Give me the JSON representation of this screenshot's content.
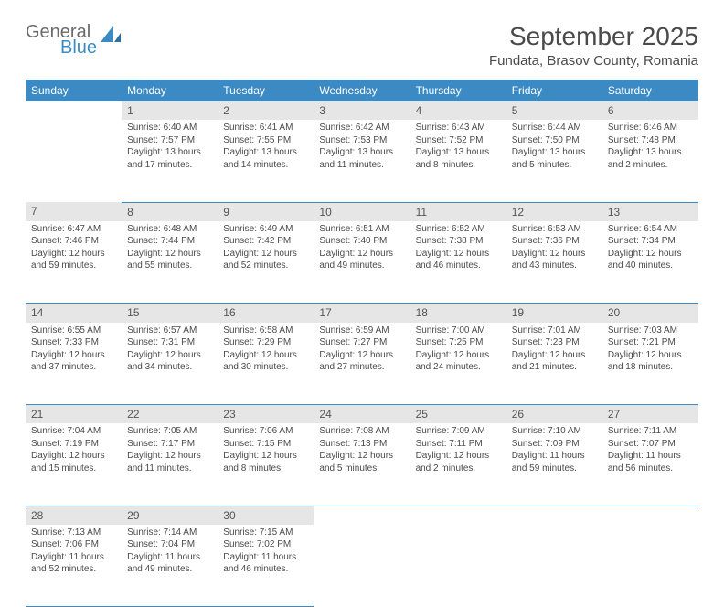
{
  "logo": {
    "word1": "General",
    "word2": "Blue",
    "accent_color": "#3b8ac4",
    "text_color": "#6b6b6b"
  },
  "title": "September 2025",
  "location": "Fundata, Brasov County, Romania",
  "header_bg": "#3b8ac4",
  "header_fg": "#ffffff",
  "daynum_bg": "#e6e6e6",
  "rule_color": "#3b8ac4",
  "body_bg": "#ffffff",
  "text_color": "#4a4a4a",
  "font_family": "Arial, Helvetica, sans-serif",
  "title_fontsize": 28,
  "location_fontsize": 15,
  "header_fontsize": 12,
  "cell_fontsize": 10,
  "day_headers": [
    "Sunday",
    "Monday",
    "Tuesday",
    "Wednesday",
    "Thursday",
    "Friday",
    "Saturday"
  ],
  "weeks": [
    [
      null,
      {
        "n": "1",
        "sr": "Sunrise: 6:40 AM",
        "ss": "Sunset: 7:57 PM",
        "d1": "Daylight: 13 hours",
        "d2": "and 17 minutes."
      },
      {
        "n": "2",
        "sr": "Sunrise: 6:41 AM",
        "ss": "Sunset: 7:55 PM",
        "d1": "Daylight: 13 hours",
        "d2": "and 14 minutes."
      },
      {
        "n": "3",
        "sr": "Sunrise: 6:42 AM",
        "ss": "Sunset: 7:53 PM",
        "d1": "Daylight: 13 hours",
        "d2": "and 11 minutes."
      },
      {
        "n": "4",
        "sr": "Sunrise: 6:43 AM",
        "ss": "Sunset: 7:52 PM",
        "d1": "Daylight: 13 hours",
        "d2": "and 8 minutes."
      },
      {
        "n": "5",
        "sr": "Sunrise: 6:44 AM",
        "ss": "Sunset: 7:50 PM",
        "d1": "Daylight: 13 hours",
        "d2": "and 5 minutes."
      },
      {
        "n": "6",
        "sr": "Sunrise: 6:46 AM",
        "ss": "Sunset: 7:48 PM",
        "d1": "Daylight: 13 hours",
        "d2": "and 2 minutes."
      }
    ],
    [
      {
        "n": "7",
        "sr": "Sunrise: 6:47 AM",
        "ss": "Sunset: 7:46 PM",
        "d1": "Daylight: 12 hours",
        "d2": "and 59 minutes."
      },
      {
        "n": "8",
        "sr": "Sunrise: 6:48 AM",
        "ss": "Sunset: 7:44 PM",
        "d1": "Daylight: 12 hours",
        "d2": "and 55 minutes."
      },
      {
        "n": "9",
        "sr": "Sunrise: 6:49 AM",
        "ss": "Sunset: 7:42 PM",
        "d1": "Daylight: 12 hours",
        "d2": "and 52 minutes."
      },
      {
        "n": "10",
        "sr": "Sunrise: 6:51 AM",
        "ss": "Sunset: 7:40 PM",
        "d1": "Daylight: 12 hours",
        "d2": "and 49 minutes."
      },
      {
        "n": "11",
        "sr": "Sunrise: 6:52 AM",
        "ss": "Sunset: 7:38 PM",
        "d1": "Daylight: 12 hours",
        "d2": "and 46 minutes."
      },
      {
        "n": "12",
        "sr": "Sunrise: 6:53 AM",
        "ss": "Sunset: 7:36 PM",
        "d1": "Daylight: 12 hours",
        "d2": "and 43 minutes."
      },
      {
        "n": "13",
        "sr": "Sunrise: 6:54 AM",
        "ss": "Sunset: 7:34 PM",
        "d1": "Daylight: 12 hours",
        "d2": "and 40 minutes."
      }
    ],
    [
      {
        "n": "14",
        "sr": "Sunrise: 6:55 AM",
        "ss": "Sunset: 7:33 PM",
        "d1": "Daylight: 12 hours",
        "d2": "and 37 minutes."
      },
      {
        "n": "15",
        "sr": "Sunrise: 6:57 AM",
        "ss": "Sunset: 7:31 PM",
        "d1": "Daylight: 12 hours",
        "d2": "and 34 minutes."
      },
      {
        "n": "16",
        "sr": "Sunrise: 6:58 AM",
        "ss": "Sunset: 7:29 PM",
        "d1": "Daylight: 12 hours",
        "d2": "and 30 minutes."
      },
      {
        "n": "17",
        "sr": "Sunrise: 6:59 AM",
        "ss": "Sunset: 7:27 PM",
        "d1": "Daylight: 12 hours",
        "d2": "and 27 minutes."
      },
      {
        "n": "18",
        "sr": "Sunrise: 7:00 AM",
        "ss": "Sunset: 7:25 PM",
        "d1": "Daylight: 12 hours",
        "d2": "and 24 minutes."
      },
      {
        "n": "19",
        "sr": "Sunrise: 7:01 AM",
        "ss": "Sunset: 7:23 PM",
        "d1": "Daylight: 12 hours",
        "d2": "and 21 minutes."
      },
      {
        "n": "20",
        "sr": "Sunrise: 7:03 AM",
        "ss": "Sunset: 7:21 PM",
        "d1": "Daylight: 12 hours",
        "d2": "and 18 minutes."
      }
    ],
    [
      {
        "n": "21",
        "sr": "Sunrise: 7:04 AM",
        "ss": "Sunset: 7:19 PM",
        "d1": "Daylight: 12 hours",
        "d2": "and 15 minutes."
      },
      {
        "n": "22",
        "sr": "Sunrise: 7:05 AM",
        "ss": "Sunset: 7:17 PM",
        "d1": "Daylight: 12 hours",
        "d2": "and 11 minutes."
      },
      {
        "n": "23",
        "sr": "Sunrise: 7:06 AM",
        "ss": "Sunset: 7:15 PM",
        "d1": "Daylight: 12 hours",
        "d2": "and 8 minutes."
      },
      {
        "n": "24",
        "sr": "Sunrise: 7:08 AM",
        "ss": "Sunset: 7:13 PM",
        "d1": "Daylight: 12 hours",
        "d2": "and 5 minutes."
      },
      {
        "n": "25",
        "sr": "Sunrise: 7:09 AM",
        "ss": "Sunset: 7:11 PM",
        "d1": "Daylight: 12 hours",
        "d2": "and 2 minutes."
      },
      {
        "n": "26",
        "sr": "Sunrise: 7:10 AM",
        "ss": "Sunset: 7:09 PM",
        "d1": "Daylight: 11 hours",
        "d2": "and 59 minutes."
      },
      {
        "n": "27",
        "sr": "Sunrise: 7:11 AM",
        "ss": "Sunset: 7:07 PM",
        "d1": "Daylight: 11 hours",
        "d2": "and 56 minutes."
      }
    ],
    [
      {
        "n": "28",
        "sr": "Sunrise: 7:13 AM",
        "ss": "Sunset: 7:06 PM",
        "d1": "Daylight: 11 hours",
        "d2": "and 52 minutes."
      },
      {
        "n": "29",
        "sr": "Sunrise: 7:14 AM",
        "ss": "Sunset: 7:04 PM",
        "d1": "Daylight: 11 hours",
        "d2": "and 49 minutes."
      },
      {
        "n": "30",
        "sr": "Sunrise: 7:15 AM",
        "ss": "Sunset: 7:02 PM",
        "d1": "Daylight: 11 hours",
        "d2": "and 46 minutes."
      },
      null,
      null,
      null,
      null
    ]
  ]
}
